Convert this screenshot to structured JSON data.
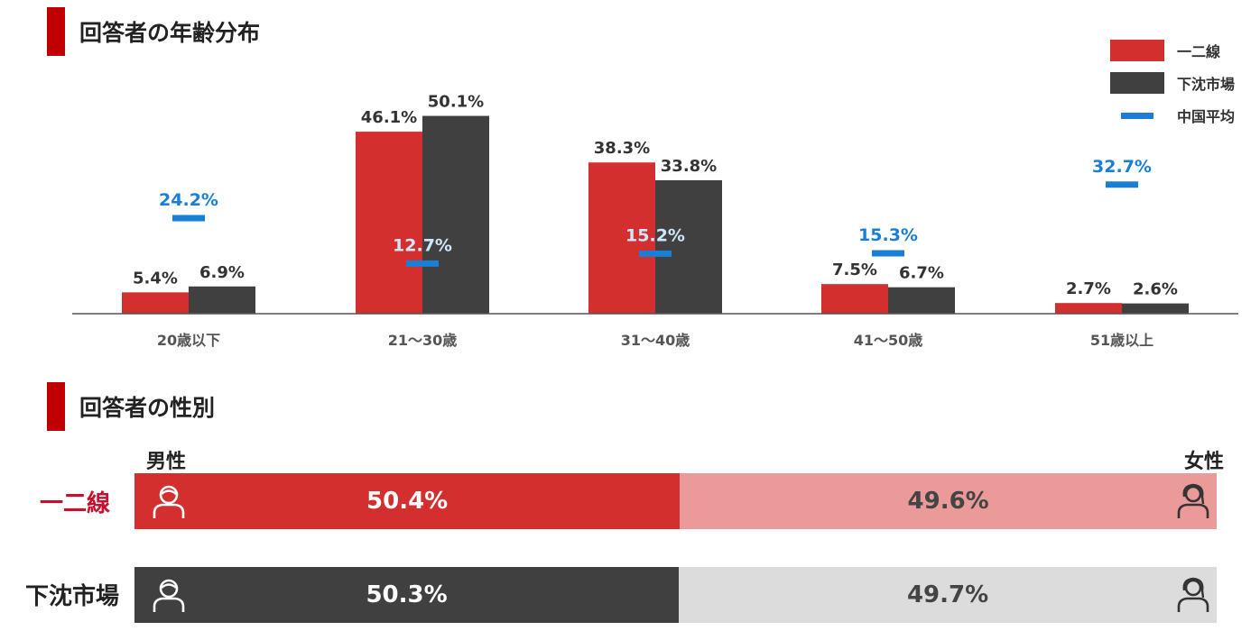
{
  "age_section": {
    "title": "回答者の年齢分布"
  },
  "legend": {
    "items": [
      {
        "label": "一二線",
        "color": "#d32f2f",
        "kind": "bar"
      },
      {
        "label": "下沈市場",
        "color": "#404040",
        "kind": "bar"
      },
      {
        "label": "中国平均",
        "color": "#1a7fd4",
        "kind": "line"
      }
    ]
  },
  "chart_data": {
    "type": "bar",
    "categories": [
      "20歳以下",
      "21〜30歳",
      "31〜40歳",
      "41〜50歳",
      "51歳以上"
    ],
    "series": [
      {
        "name": "一二線",
        "color": "#d32f2f",
        "values": [
          5.4,
          46.1,
          38.3,
          7.5,
          2.7
        ]
      },
      {
        "name": "下沈市場",
        "color": "#404040",
        "values": [
          6.9,
          50.1,
          33.8,
          6.7,
          2.6
        ]
      },
      {
        "name": "中国平均",
        "color": "#1a7fd4",
        "marker": "dash",
        "values": [
          24.2,
          12.7,
          15.2,
          15.3,
          32.7
        ]
      }
    ],
    "value_format": "%",
    "ylim": [
      0,
      60
    ],
    "grid": false,
    "legend_position": "top-right"
  },
  "gender_section": {
    "title": "回答者の性別",
    "male_label": "男性",
    "female_label": "女性",
    "rows": [
      {
        "label": "一二線",
        "label_color": "#c8102e",
        "male": 50.4,
        "female": 49.6,
        "male_display": "50.4%",
        "female_display": "49.6%",
        "male_color": "#d32f2f",
        "female_color": "#ea9a99",
        "female_text_color": "#444444"
      },
      {
        "label": "下沈市場",
        "label_color": "#222222",
        "male": 50.3,
        "female": 49.7,
        "male_display": "50.3%",
        "female_display": "49.7%",
        "male_color": "#404040",
        "female_color": "#dcdcdc",
        "female_text_color": "#444444"
      }
    ],
    "icons": {
      "male": "male-person-icon",
      "female": "female-person-icon"
    }
  }
}
